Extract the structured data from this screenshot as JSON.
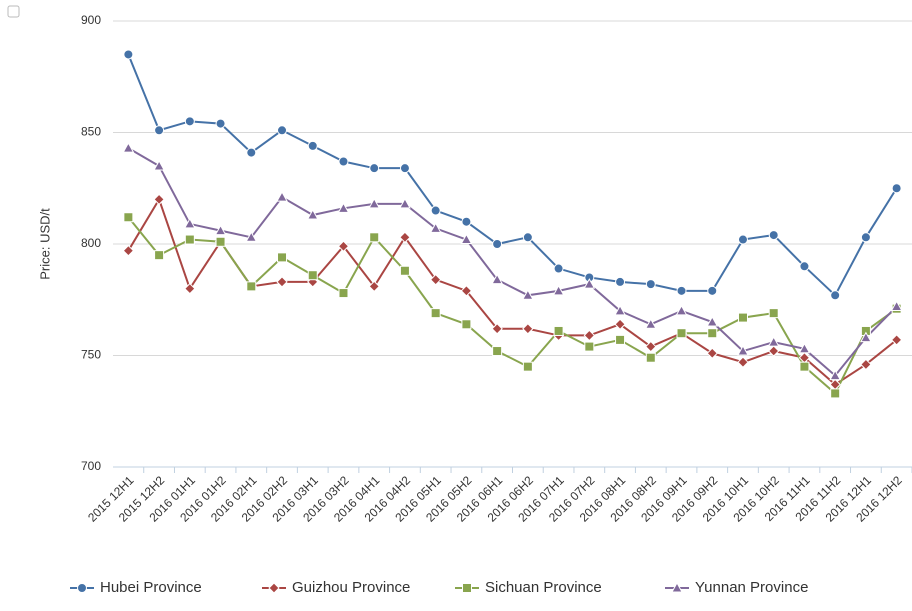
{
  "chart_data": {
    "type": "line",
    "y_label": "Price: USD/t",
    "categories": [
      "2015 12H1",
      "2015 12H2",
      "2016 01H1",
      "2016 01H2",
      "2016 02H1",
      "2016 02H2",
      "2016 03H1",
      "2016 03H2",
      "2016 04H1",
      "2016 04H2",
      "2016 05H1",
      "2016 05H2",
      "2016 06H1",
      "2016 06H2",
      "2016 07H1",
      "2016 07H2",
      "2016 08H1",
      "2016 08H2",
      "2016 09H1",
      "2016 09H2",
      "2016 10H1",
      "2016 10H2",
      "2016 11H1",
      "2016 11H2",
      "2016 12H1",
      "2016 12H2"
    ],
    "series": [
      {
        "name": "Hubei Province",
        "color": "#4572a7",
        "marker": "circle",
        "values": [
          885,
          851,
          855,
          854,
          841,
          851,
          844,
          837,
          834,
          834,
          815,
          810,
          800,
          803,
          789,
          785,
          783,
          782,
          779,
          779,
          802,
          804,
          790,
          777,
          803,
          825
        ]
      },
      {
        "name": "Guizhou Province",
        "color": "#aa4643",
        "marker": "diamond",
        "values": [
          797,
          820,
          780,
          801,
          781,
          783,
          783,
          799,
          781,
          803,
          784,
          779,
          762,
          762,
          759,
          759,
          764,
          754,
          760,
          751,
          747,
          752,
          749,
          737,
          746,
          757
        ]
      },
      {
        "name": "Sichuan Province",
        "color": "#89a54e",
        "marker": "square",
        "values": [
          812,
          795,
          802,
          801,
          781,
          794,
          786,
          778,
          803,
          788,
          769,
          764,
          752,
          745,
          761,
          754,
          757,
          749,
          760,
          760,
          767,
          769,
          745,
          733,
          761,
          771
        ]
      },
      {
        "name": "Yunnan Province",
        "color": "#80699b",
        "marker": "triangle",
        "values": [
          843,
          835,
          809,
          806,
          803,
          821,
          813,
          816,
          818,
          818,
          807,
          802,
          784,
          777,
          779,
          782,
          770,
          764,
          770,
          765,
          752,
          756,
          753,
          741,
          758,
          772
        ]
      }
    ],
    "ylim": [
      700,
      900
    ],
    "yticks": [
      700,
      750,
      800,
      850,
      900
    ],
    "grid": true,
    "legend": "bottom"
  }
}
